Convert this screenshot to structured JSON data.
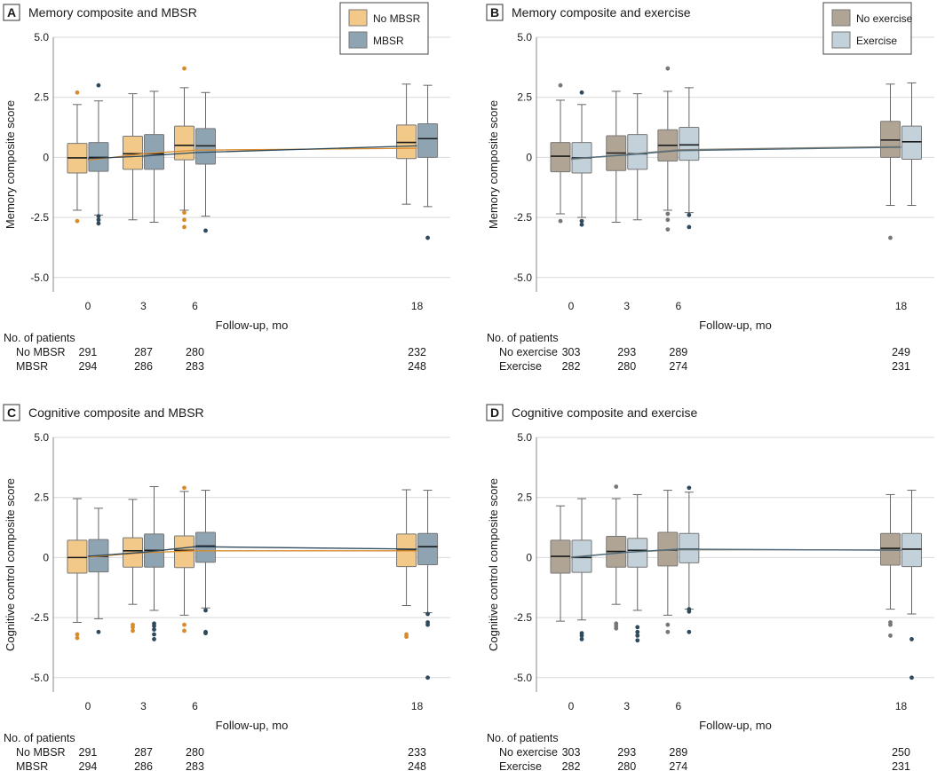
{
  "figure": {
    "panels": [
      {
        "letter": "A",
        "title": "Memory composite and MBSR",
        "ylabel": "Memory composite score",
        "xlabel": "Follow-up, mo",
        "table_title": "No. of patients",
        "table_rows": [
          {
            "label": "No MBSR",
            "counts": [
              "291",
              "287",
              "280",
              "232"
            ]
          },
          {
            "label": "MBSR",
            "counts": [
              "294",
              "286",
              "283",
              "248"
            ]
          }
        ]
      },
      {
        "letter": "B",
        "title": "Memory composite and exercise",
        "ylabel": "Memory composite score",
        "xlabel": "Follow-up, mo",
        "table_title": "No. of patients",
        "table_rows": [
          {
            "label": "No exercise",
            "counts": [
              "303",
              "293",
              "289",
              "249"
            ]
          },
          {
            "label": "Exercise",
            "counts": [
              "282",
              "280",
              "274",
              "231"
            ]
          }
        ]
      },
      {
        "letter": "C",
        "title": "Cognitive composite and MBSR",
        "ylabel": "Cognitive control composite score",
        "xlabel": "Follow-up, mo",
        "table_title": "No. of patients",
        "table_rows": [
          {
            "label": "No MBSR",
            "counts": [
              "291",
              "287",
              "280",
              "233"
            ]
          },
          {
            "label": "MBSR",
            "counts": [
              "294",
              "286",
              "283",
              "248"
            ]
          }
        ]
      },
      {
        "letter": "D",
        "title": "Cognitive composite and exercise",
        "ylabel": "Cognitive control composite score",
        "xlabel": "Follow-up, mo",
        "table_title": "No. of patients",
        "table_rows": [
          {
            "label": "No exercise",
            "counts": [
              "303",
              "293",
              "289",
              "250"
            ]
          },
          {
            "label": "Exercise",
            "counts": [
              "282",
              "280",
              "274",
              "231"
            ]
          }
        ]
      }
    ]
  },
  "chart_data": [
    {
      "type": "box",
      "title": "Memory composite and MBSR",
      "xlabel": "Follow-up, mo",
      "ylabel": "Memory composite score",
      "x": [
        0,
        3,
        6,
        18
      ],
      "x_tick_labels": [
        "0",
        "3",
        "6",
        "18"
      ],
      "ylim": [
        -5.6,
        5.0
      ],
      "y_ticks": [
        5.0,
        2.5,
        0,
        -2.5,
        -5.0
      ],
      "y_tick_labels": [
        "5.0",
        "2.5",
        "0",
        "-2.5",
        "-5.0"
      ],
      "grid": true,
      "legend": "top-right",
      "series": [
        {
          "name": "No MBSR",
          "color": "#f3c989",
          "line_color": "#d98b2c",
          "point_color": "#d98b2c",
          "boxes": [
            {
              "lower_whisker": -2.2,
              "q1": -0.65,
              "median": -0.02,
              "q3": 0.58,
              "upper_whisker": 2.2,
              "outliers": [
                2.7,
                -2.65
              ]
            },
            {
              "lower_whisker": -2.6,
              "q1": -0.5,
              "median": 0.15,
              "q3": 0.88,
              "upper_whisker": 2.65,
              "outliers": []
            },
            {
              "lower_whisker": -2.2,
              "q1": -0.1,
              "median": 0.5,
              "q3": 1.3,
              "upper_whisker": 2.9,
              "outliers": [
                3.7,
                -2.3,
                -2.6,
                -2.9
              ]
            },
            {
              "lower_whisker": -1.95,
              "q1": -0.05,
              "median": 0.62,
              "q3": 1.35,
              "upper_whisker": 3.05,
              "outliers": []
            }
          ],
          "trend": [
            -0.12,
            0.15,
            0.3,
            0.38
          ]
        },
        {
          "name": "MBSR",
          "color": "#8fa4b2",
          "line_color": "#2e4a5c",
          "point_color": "#2e4a5c",
          "boxes": [
            {
              "lower_whisker": -2.4,
              "q1": -0.58,
              "median": 0.0,
              "q3": 0.62,
              "upper_whisker": 2.35,
              "outliers": [
                3.0,
                -2.45,
                -2.6,
                -2.75
              ]
            },
            {
              "lower_whisker": -2.7,
              "q1": -0.5,
              "median": 0.15,
              "q3": 0.95,
              "upper_whisker": 2.75,
              "outliers": []
            },
            {
              "lower_whisker": -2.45,
              "q1": -0.28,
              "median": 0.48,
              "q3": 1.2,
              "upper_whisker": 2.7,
              "outliers": [
                -3.05
              ]
            },
            {
              "lower_whisker": -2.05,
              "q1": 0.0,
              "median": 0.78,
              "q3": 1.4,
              "upper_whisker": 3.0,
              "outliers": [
                -3.35
              ]
            }
          ],
          "trend": [
            -0.05,
            0.05,
            0.2,
            0.48
          ]
        }
      ]
    },
    {
      "type": "box",
      "title": "Memory composite and exercise",
      "xlabel": "Follow-up, mo",
      "ylabel": "Memory composite score",
      "x": [
        0,
        3,
        6,
        18
      ],
      "x_tick_labels": [
        "0",
        "3",
        "6",
        "18"
      ],
      "ylim": [
        -5.6,
        5.0
      ],
      "y_ticks": [
        5.0,
        2.5,
        0,
        -2.5,
        -5.0
      ],
      "y_tick_labels": [
        "5.0",
        "2.5",
        "0",
        "-2.5",
        "-5.0"
      ],
      "grid": true,
      "legend": "top-right",
      "series": [
        {
          "name": "No exercise",
          "color": "#b0a595",
          "line_color": "#8a8070",
          "point_color": "#777777",
          "boxes": [
            {
              "lower_whisker": -2.35,
              "q1": -0.6,
              "median": 0.05,
              "q3": 0.62,
              "upper_whisker": 2.38,
              "outliers": [
                3.0,
                -2.65
              ]
            },
            {
              "lower_whisker": -2.7,
              "q1": -0.55,
              "median": 0.18,
              "q3": 0.9,
              "upper_whisker": 2.75,
              "outliers": []
            },
            {
              "lower_whisker": -2.2,
              "q1": -0.15,
              "median": 0.5,
              "q3": 1.15,
              "upper_whisker": 2.75,
              "outliers": [
                3.7,
                -2.35,
                -2.6,
                -3.0
              ]
            },
            {
              "lower_whisker": -2.0,
              "q1": 0.0,
              "median": 0.72,
              "q3": 1.5,
              "upper_whisker": 3.05,
              "outliers": [
                -3.35
              ]
            }
          ],
          "trend": [
            -0.08,
            0.12,
            0.32,
            0.45
          ]
        },
        {
          "name": "Exercise",
          "color": "#c3d1da",
          "line_color": "#4d6b7c",
          "point_color": "#2e4a5c",
          "boxes": [
            {
              "lower_whisker": -2.5,
              "q1": -0.65,
              "median": -0.02,
              "q3": 0.62,
              "upper_whisker": 2.2,
              "outliers": [
                2.7,
                -2.65,
                -2.8
              ]
            },
            {
              "lower_whisker": -2.6,
              "q1": -0.5,
              "median": 0.15,
              "q3": 0.95,
              "upper_whisker": 2.65,
              "outliers": []
            },
            {
              "lower_whisker": -2.3,
              "q1": -0.12,
              "median": 0.52,
              "q3": 1.25,
              "upper_whisker": 2.9,
              "outliers": [
                -2.4,
                -2.9
              ]
            },
            {
              "lower_whisker": -2.0,
              "q1": -0.08,
              "median": 0.65,
              "q3": 1.3,
              "upper_whisker": 3.1,
              "outliers": []
            }
          ],
          "trend": [
            -0.05,
            0.1,
            0.28,
            0.42
          ]
        }
      ]
    },
    {
      "type": "box",
      "title": "Cognitive composite and MBSR",
      "xlabel": "Follow-up, mo",
      "ylabel": "Cognitive control composite score",
      "x": [
        0,
        3,
        6,
        18
      ],
      "x_tick_labels": [
        "0",
        "3",
        "6",
        "18"
      ],
      "ylim": [
        -5.6,
        5.0
      ],
      "y_ticks": [
        5.0,
        2.5,
        0,
        -2.5,
        -5.0
      ],
      "y_tick_labels": [
        "5.0",
        "2.5",
        "0",
        "-2.5",
        "-5.0"
      ],
      "grid": true,
      "legend": "none",
      "series": [
        {
          "name": "No MBSR",
          "color": "#f3c989",
          "line_color": "#d98b2c",
          "point_color": "#d98b2c",
          "boxes": [
            {
              "lower_whisker": -2.7,
              "q1": -0.65,
              "median": 0.0,
              "q3": 0.72,
              "upper_whisker": 2.45,
              "outliers": [
                -3.2,
                -3.35
              ]
            },
            {
              "lower_whisker": -1.95,
              "q1": -0.4,
              "median": 0.28,
              "q3": 0.82,
              "upper_whisker": 2.42,
              "outliers": [
                -2.8,
                -2.9,
                -3.05
              ]
            },
            {
              "lower_whisker": -2.4,
              "q1": -0.42,
              "median": 0.3,
              "q3": 0.9,
              "upper_whisker": 2.75,
              "outliers": [
                2.9,
                -2.8,
                -3.05
              ]
            },
            {
              "lower_whisker": -2.0,
              "q1": -0.38,
              "median": 0.3,
              "q3": 0.98,
              "upper_whisker": 2.82,
              "outliers": [
                -3.2,
                -3.3
              ]
            }
          ],
          "trend": [
            0.02,
            0.2,
            0.28,
            0.28
          ]
        },
        {
          "name": "MBSR",
          "color": "#8fa4b2",
          "line_color": "#2e4a5c",
          "point_color": "#2e4a5c",
          "boxes": [
            {
              "lower_whisker": -2.55,
              "q1": -0.6,
              "median": 0.05,
              "q3": 0.75,
              "upper_whisker": 2.05,
              "outliers": [
                -3.1
              ]
            },
            {
              "lower_whisker": -2.2,
              "q1": -0.4,
              "median": 0.3,
              "q3": 0.98,
              "upper_whisker": 2.95,
              "outliers": [
                -2.75,
                -2.85,
                -3.0,
                -3.2,
                -3.4
              ]
            },
            {
              "lower_whisker": -2.1,
              "q1": -0.2,
              "median": 0.48,
              "q3": 1.05,
              "upper_whisker": 2.8,
              "outliers": [
                -2.2,
                -3.1,
                -3.15
              ]
            },
            {
              "lower_whisker": -2.3,
              "q1": -0.3,
              "median": 0.45,
              "q3": 1.0,
              "upper_whisker": 2.8,
              "outliers": [
                -2.35,
                -2.7,
                -2.8,
                -5.0
              ]
            }
          ],
          "trend": [
            0.05,
            0.22,
            0.45,
            0.35
          ]
        }
      ]
    },
    {
      "type": "box",
      "title": "Cognitive composite and exercise",
      "xlabel": "Follow-up, mo",
      "ylabel": "Cognitive control composite score",
      "x": [
        0,
        3,
        6,
        18
      ],
      "x_tick_labels": [
        "0",
        "3",
        "6",
        "18"
      ],
      "ylim": [
        -5.6,
        5.0
      ],
      "y_ticks": [
        5.0,
        2.5,
        0,
        -2.5,
        -5.0
      ],
      "y_tick_labels": [
        "5.0",
        "2.5",
        "0",
        "-2.5",
        "-5.0"
      ],
      "grid": true,
      "legend": "none",
      "series": [
        {
          "name": "No exercise",
          "color": "#b0a595",
          "line_color": "#8a8070",
          "point_color": "#777777",
          "boxes": [
            {
              "lower_whisker": -2.65,
              "q1": -0.65,
              "median": 0.05,
              "q3": 0.72,
              "upper_whisker": 2.15,
              "outliers": []
            },
            {
              "lower_whisker": -1.95,
              "q1": -0.4,
              "median": 0.25,
              "q3": 0.88,
              "upper_whisker": 2.45,
              "outliers": [
                2.95,
                -2.75,
                -2.85,
                -2.95
              ]
            },
            {
              "lower_whisker": -2.4,
              "q1": -0.35,
              "median": 0.3,
              "q3": 1.05,
              "upper_whisker": 2.8,
              "outliers": [
                -2.8,
                -3.1
              ]
            },
            {
              "lower_whisker": -2.15,
              "q1": -0.32,
              "median": 0.38,
              "q3": 1.0,
              "upper_whisker": 2.62,
              "outliers": [
                -2.7,
                -2.8,
                -3.25
              ]
            }
          ],
          "trend": [
            0.02,
            0.22,
            0.32,
            0.32
          ]
        },
        {
          "name": "Exercise",
          "color": "#c3d1da",
          "line_color": "#4d6b7c",
          "point_color": "#2e4a5c",
          "boxes": [
            {
              "lower_whisker": -2.6,
              "q1": -0.62,
              "median": 0.0,
              "q3": 0.72,
              "upper_whisker": 2.45,
              "outliers": [
                -3.15,
                -3.25,
                -3.4
              ]
            },
            {
              "lower_whisker": -2.2,
              "q1": -0.4,
              "median": 0.3,
              "q3": 0.8,
              "upper_whisker": 2.62,
              "outliers": [
                -2.9,
                -3.1,
                -3.25,
                -3.45
              ]
            },
            {
              "lower_whisker": -2.15,
              "q1": -0.22,
              "median": 0.35,
              "q3": 1.0,
              "upper_whisker": 2.72,
              "outliers": [
                2.9,
                -2.15,
                -2.25,
                -3.1
              ]
            },
            {
              "lower_whisker": -2.35,
              "q1": -0.38,
              "median": 0.35,
              "q3": 1.0,
              "upper_whisker": 2.8,
              "outliers": [
                -3.4,
                -5.0
              ]
            }
          ],
          "trend": [
            0.0,
            0.22,
            0.35,
            0.3
          ]
        }
      ]
    }
  ]
}
